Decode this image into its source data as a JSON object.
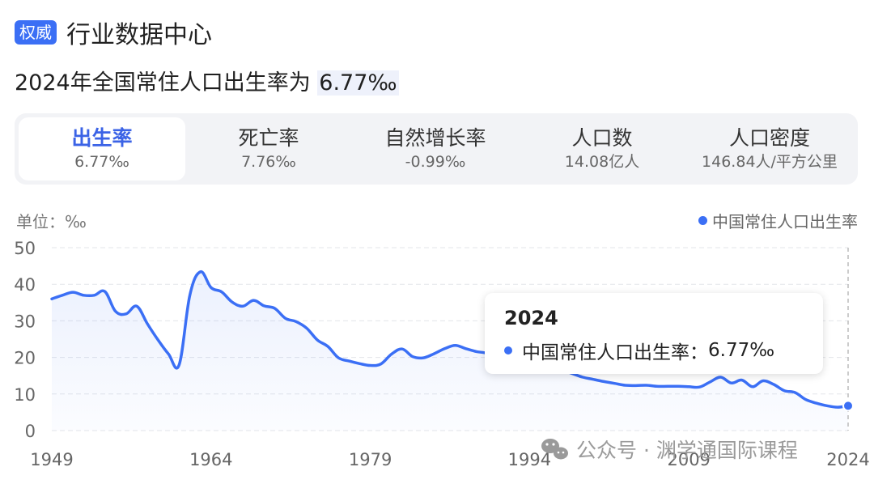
{
  "header": {
    "badge": "权威",
    "title": "行业数据中心"
  },
  "headline": {
    "text": "2024年全国常住人口出生率为 ",
    "value": "6.77‰"
  },
  "tabs": [
    {
      "label": "出生率",
      "value": "6.77‰",
      "active": true
    },
    {
      "label": "死亡率",
      "value": "7.76‰"
    },
    {
      "label": "自然增长率",
      "value": "-0.99‰"
    },
    {
      "label": "人口数",
      "value": "14.08亿人"
    },
    {
      "label": "人口密度",
      "value": "146.84人/平方公里"
    }
  ],
  "tooltip": {
    "year": "2024",
    "series_label": "中国常住人口出生率：",
    "value": "6.77‰"
  },
  "colors": {
    "accent": "#3b6ff5",
    "active_tab_text": "#3b63e6"
  },
  "chart_data": {
    "type": "area",
    "unit_label": "单位：‰",
    "legend_position": "top-right",
    "ylim": [
      0,
      50
    ],
    "yticks": [
      0,
      10,
      20,
      30,
      40,
      50
    ],
    "xticks": [
      1949,
      1964,
      1979,
      1994,
      2009,
      2024
    ],
    "grid": true,
    "highlight_x": 2024,
    "series": [
      {
        "name": "中国常住人口出生率",
        "x": [
          1949,
          1950,
          1951,
          1952,
          1953,
          1954,
          1955,
          1956,
          1957,
          1958,
          1959,
          1960,
          1961,
          1962,
          1963,
          1964,
          1965,
          1966,
          1967,
          1968,
          1969,
          1970,
          1971,
          1972,
          1973,
          1974,
          1975,
          1976,
          1977,
          1978,
          1979,
          1980,
          1981,
          1982,
          1983,
          1984,
          1985,
          1986,
          1987,
          1988,
          1989,
          1990,
          1991,
          1992,
          1993,
          1994,
          1995,
          1996,
          1997,
          1998,
          1999,
          2000,
          2001,
          2002,
          2003,
          2004,
          2005,
          2006,
          2007,
          2008,
          2009,
          2010,
          2011,
          2012,
          2013,
          2014,
          2015,
          2016,
          2017,
          2018,
          2019,
          2020,
          2021,
          2022,
          2023,
          2024
        ],
        "values": [
          36.0,
          37.0,
          37.8,
          37.0,
          37.0,
          38.0,
          32.6,
          31.9,
          34.0,
          29.2,
          24.8,
          20.9,
          18.0,
          37.0,
          43.4,
          39.1,
          37.9,
          35.1,
          34.0,
          35.6,
          34.1,
          33.4,
          30.7,
          29.8,
          28.0,
          24.8,
          23.0,
          19.9,
          19.0,
          18.3,
          17.8,
          18.2,
          20.9,
          22.3,
          20.2,
          19.9,
          21.0,
          22.4,
          23.3,
          22.4,
          21.6,
          21.1,
          19.7,
          18.2,
          18.1,
          17.7,
          17.1,
          17.0,
          16.6,
          15.6,
          14.6,
          14.0,
          13.4,
          12.9,
          12.4,
          12.3,
          12.4,
          12.1,
          12.1,
          12.1,
          12.0,
          11.9,
          13.3,
          14.6,
          13.0,
          13.8,
          12.0,
          13.6,
          12.6,
          10.9,
          10.4,
          8.5,
          7.5,
          6.8,
          6.4,
          6.77
        ]
      }
    ]
  },
  "watermark": {
    "text": "公众号 · 渊学通国际课程"
  }
}
